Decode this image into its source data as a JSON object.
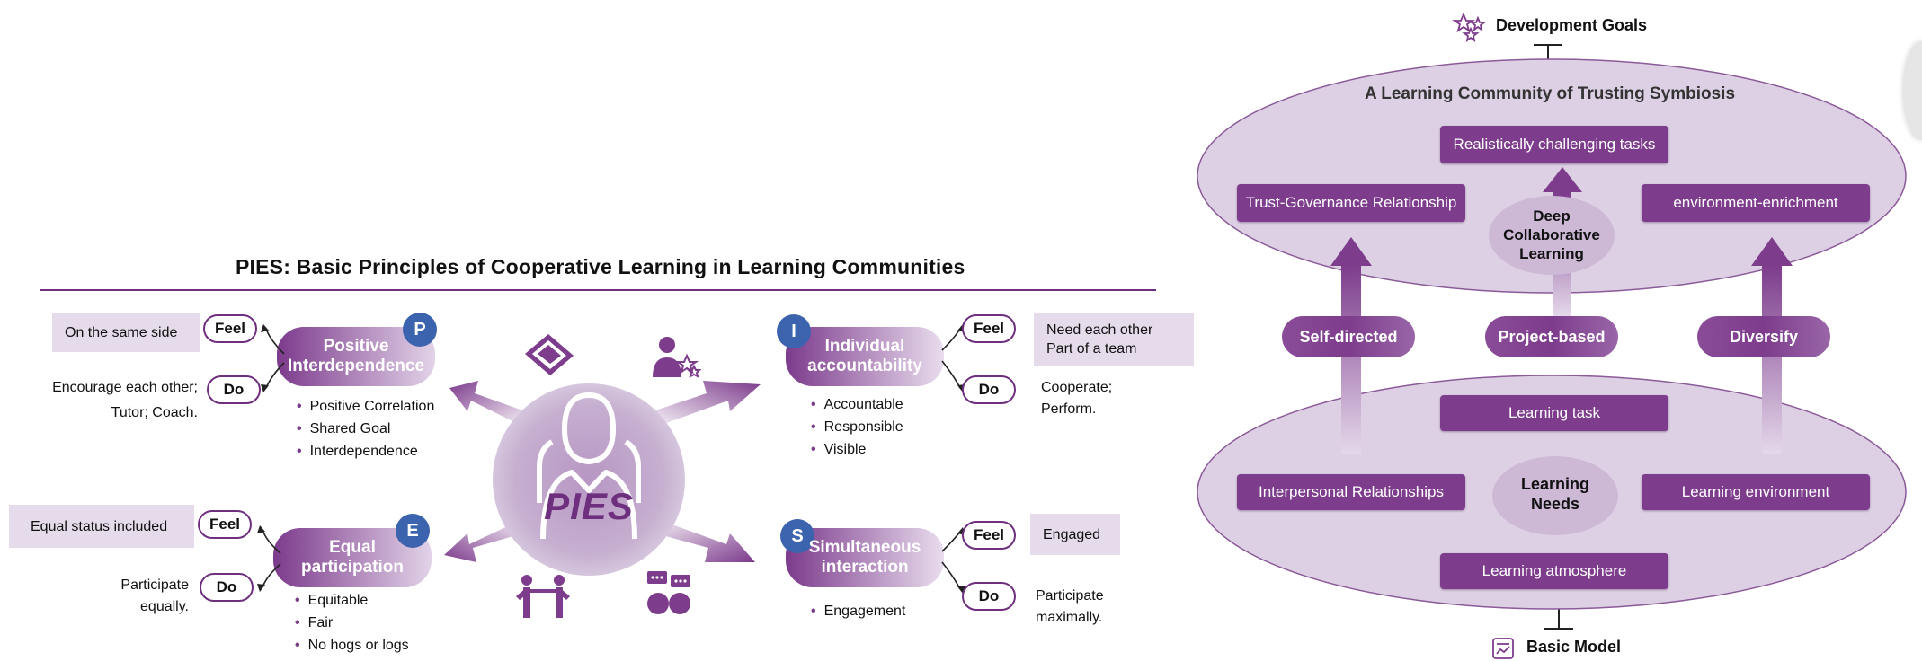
{
  "left": {
    "title": "PIES: Basic Principles of Cooperative Learning in Learning Communities",
    "center_label": "PIES",
    "feel_label": "Feel",
    "do_label": "Do",
    "p": {
      "badge": "P",
      "name_line1": "Positive",
      "name_line2": "Interdependence",
      "feel_text": "On the same side",
      "do_line1": "Encourage each other;",
      "do_line2": "Tutor;  Coach.",
      "bullets": [
        "Positive Correlation",
        "Shared Goal",
        "Interdependence"
      ]
    },
    "i": {
      "badge": "I",
      "name_line1": "Individual",
      "name_line2": "accountability",
      "feel_line1": "Need each other",
      "feel_line2": "Part of a team",
      "do_line1": "Cooperate;",
      "do_line2": "Perform.",
      "bullets": [
        "Accountable",
        "Responsible",
        "Visible"
      ]
    },
    "e": {
      "badge": "E",
      "name_line1": "Equal",
      "name_line2": "participation",
      "feel_text": "Equal status included",
      "do_line1": "Participate",
      "do_line2": "equally.",
      "bullets": [
        "Equitable",
        "Fair",
        "No hogs or logs"
      ]
    },
    "s": {
      "badge": "S",
      "name_line1": "Simultaneous",
      "name_line2": "interaction",
      "feel_text": "Engaged",
      "do_line1": "Participate",
      "do_line2": "maximally.",
      "bullets": [
        "Engagement"
      ]
    }
  },
  "right": {
    "top_label": "Development Goals",
    "bottom_label": "Basic Model",
    "upper_title": "A Learning Community of Trusting Symbiosis",
    "upper_boxes": {
      "top": "Realistically challenging tasks",
      "left": "Trust-Governance Relationship",
      "right": "environment-enrichment"
    },
    "upper_center": [
      "Deep",
      "Collaborative",
      "Learning"
    ],
    "middle_pills": [
      "Self-directed",
      "Project-based",
      "Diversify"
    ],
    "lower_boxes": {
      "top": "Learning task",
      "left": "Interpersonal Relationships",
      "right": "Learning environment",
      "bottom": "Learning atmosphere"
    },
    "lower_center": [
      "Learning",
      "Needs"
    ]
  },
  "colors": {
    "purple_dark": "#6e2f7e",
    "purple_box": "#7d3c8c",
    "lavender": "#e6dbea",
    "ellipse_fill": "#ddd0e4",
    "badge_blue": "#3c63ae"
  },
  "icons": [
    "handshake-icon",
    "person-star-icon",
    "people-icon",
    "chat-heads-icon",
    "stars-icon",
    "chart-doc-icon"
  ]
}
